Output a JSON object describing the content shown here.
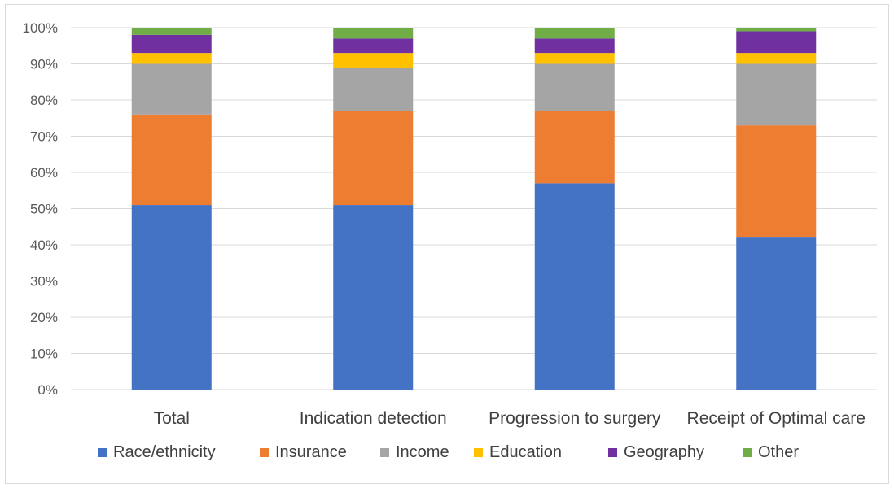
{
  "chart_data": {
    "type": "bar",
    "stacked": true,
    "percent": true,
    "categories": [
      "Total",
      "Indication detection",
      "Progression to surgery",
      "Receipt of Optimal care"
    ],
    "series": [
      {
        "name": "Race/ethnicity",
        "color": "#4472C4",
        "values": [
          51,
          51,
          57,
          42
        ]
      },
      {
        "name": "Insurance",
        "color": "#ED7D31",
        "values": [
          25,
          26,
          20,
          31
        ]
      },
      {
        "name": "Income",
        "color": "#A5A5A5",
        "values": [
          14,
          12,
          13,
          17
        ]
      },
      {
        "name": "Education",
        "color": "#FFC000",
        "values": [
          3,
          4,
          3,
          3
        ]
      },
      {
        "name": "Geography",
        "color": "#7030A0",
        "values": [
          5,
          4,
          4,
          6
        ]
      },
      {
        "name": "Other",
        "color": "#70AD47",
        "values": [
          2,
          3,
          3,
          1
        ]
      }
    ],
    "yticks": [
      "0%",
      "10%",
      "20%",
      "30%",
      "40%",
      "50%",
      "60%",
      "70%",
      "80%",
      "90%",
      "100%"
    ],
    "ylim": [
      0,
      100
    ],
    "grid": true,
    "legend_position": "bottom"
  }
}
